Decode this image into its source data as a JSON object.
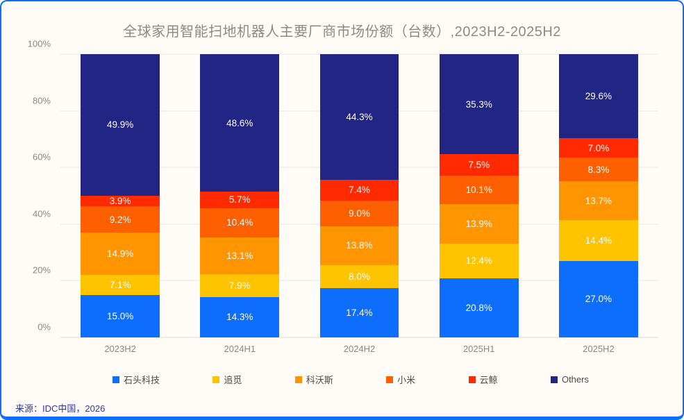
{
  "chart_data": {
    "type": "bar",
    "stacked": true,
    "orientation": "vertical",
    "title": "全球家用智能扫地机器人主要厂商市场份额（台数）,2023H2-2025H2",
    "categories": [
      "2023H2",
      "2024H1",
      "2024H2",
      "2025H1",
      "2025H2"
    ],
    "series": [
      {
        "name": "石头科技",
        "color": "#0d6efd",
        "values": [
          15.0,
          14.3,
          17.4,
          20.8,
          27.0
        ]
      },
      {
        "name": "追觅",
        "color": "#ffc400",
        "values": [
          7.1,
          7.9,
          8.0,
          12.4,
          14.4
        ]
      },
      {
        "name": "科沃斯",
        "color": "#ff9500",
        "values": [
          14.9,
          13.1,
          13.8,
          13.9,
          13.7
        ]
      },
      {
        "name": "小米",
        "color": "#fe6000",
        "values": [
          9.2,
          10.4,
          9.0,
          10.1,
          8.3
        ]
      },
      {
        "name": "云鲸",
        "color": "#ff2a00",
        "values": [
          3.9,
          5.7,
          7.4,
          7.5,
          7.0
        ]
      },
      {
        "name": "Others",
        "color": "#232584",
        "values": [
          49.9,
          48.6,
          44.3,
          35.3,
          29.6
        ]
      }
    ],
    "ylim": [
      0,
      100
    ],
    "y_ticks": [
      "0%",
      "20%",
      "40%",
      "60%",
      "80%",
      "100%"
    ],
    "y_tick_values": [
      0,
      20,
      40,
      60,
      80,
      100
    ],
    "grid": true,
    "legend_position": "bottom",
    "data_label_format": "percent-one-decimal"
  },
  "source": {
    "text": "来源：IDC中国，2026"
  },
  "colors": {
    "card_border": "#0d6efd",
    "card_background": "#fffcf8",
    "gridline": "#e9e6e2",
    "title_text": "#8c8a86",
    "axis_text": "#8a8886",
    "legend_text": "#4c4b49",
    "source_text": "#3134a4",
    "data_label_text": "#fdfdfd"
  }
}
